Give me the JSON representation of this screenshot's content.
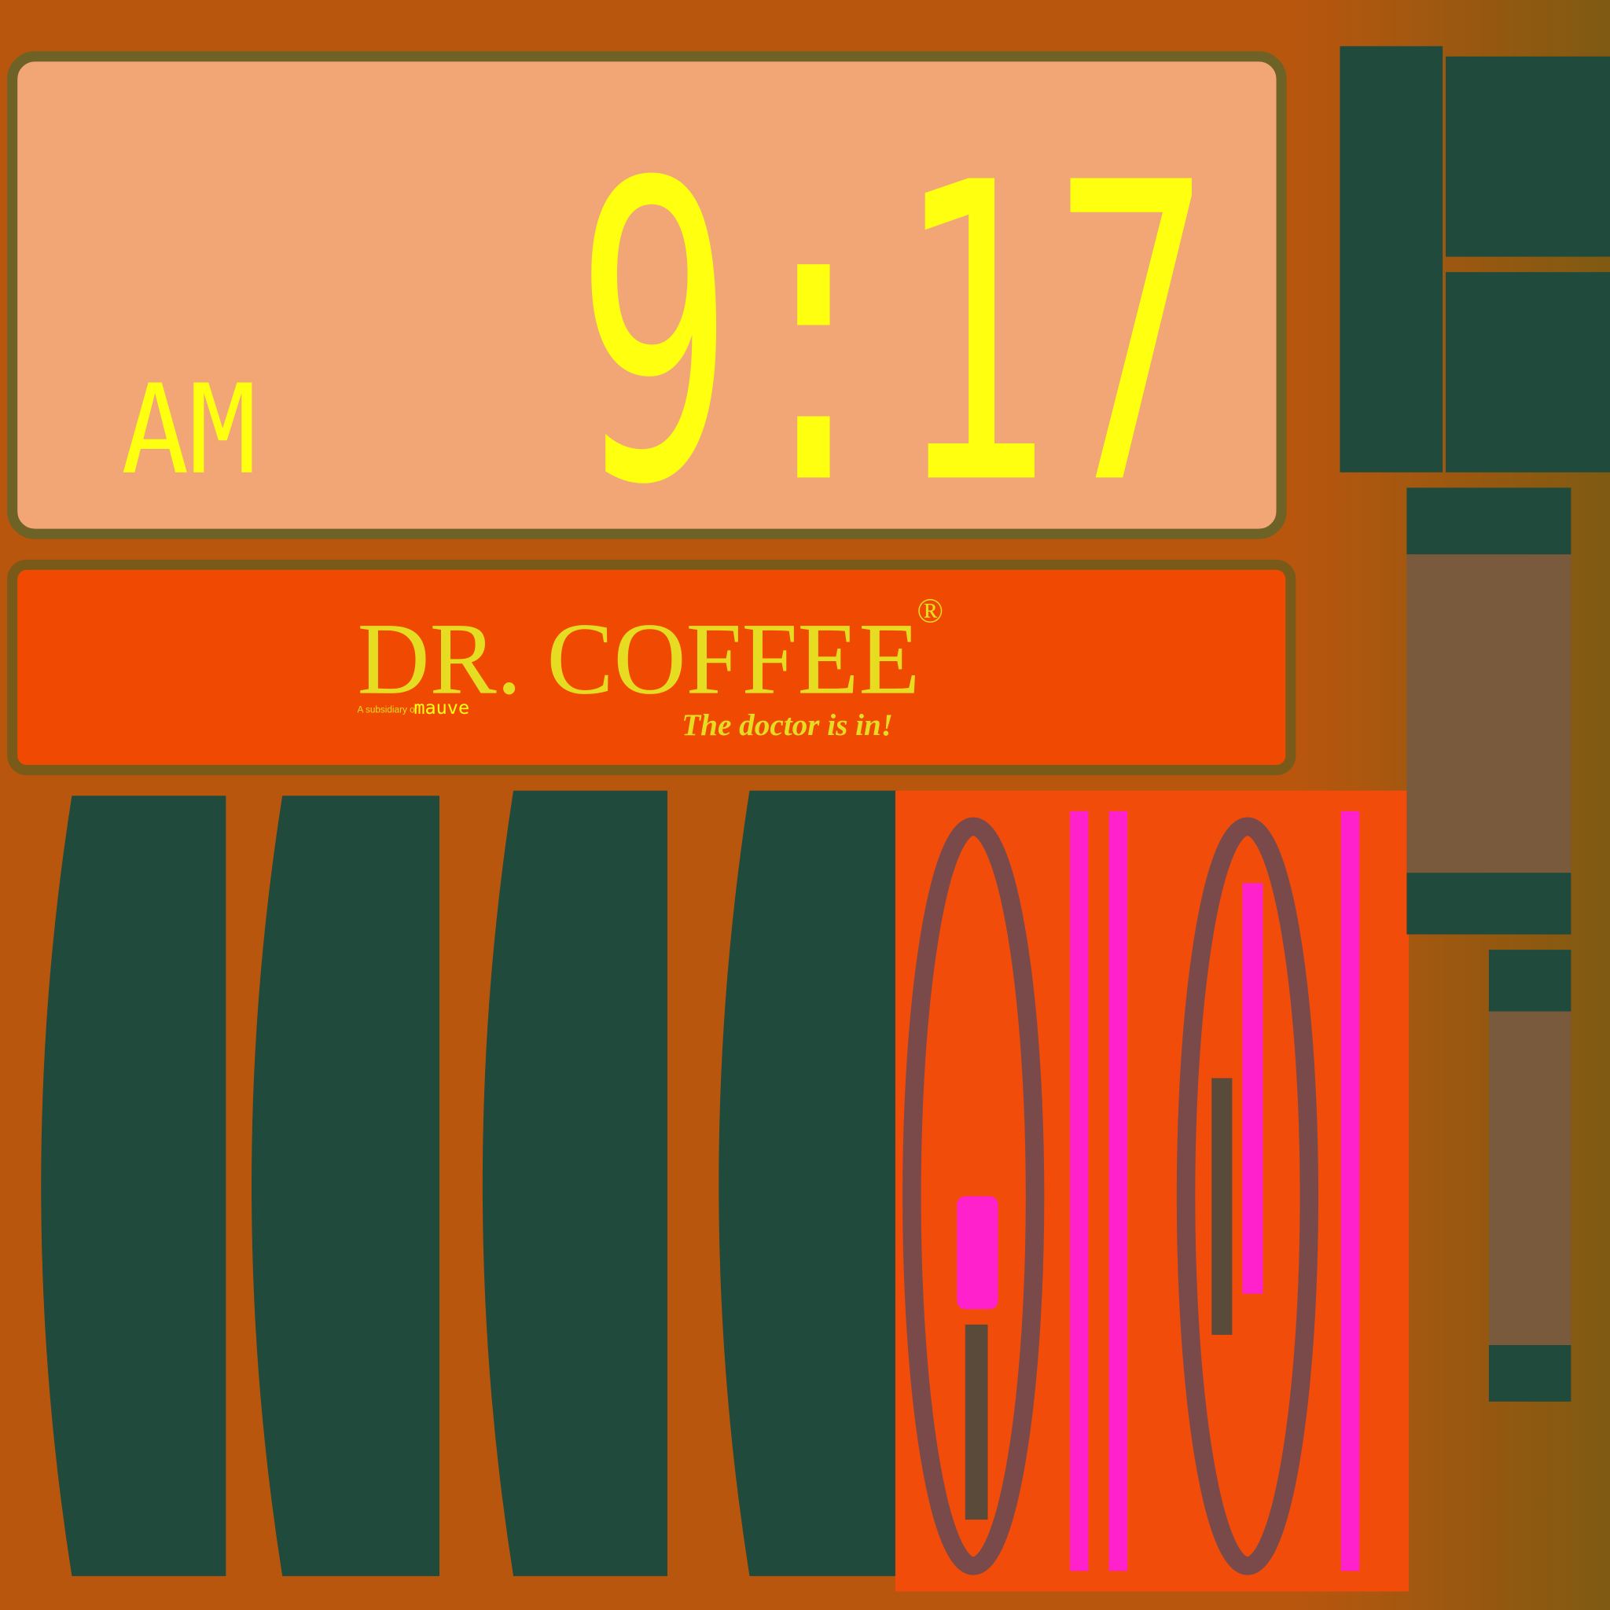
{
  "display": {
    "period": "AM",
    "time": "9:17"
  },
  "logo": {
    "brand": "DR. COFFEE",
    "mark": "®",
    "subsidiary": "A subsidiary of",
    "parent": "mauve",
    "tagline": "The doctor is in!"
  }
}
